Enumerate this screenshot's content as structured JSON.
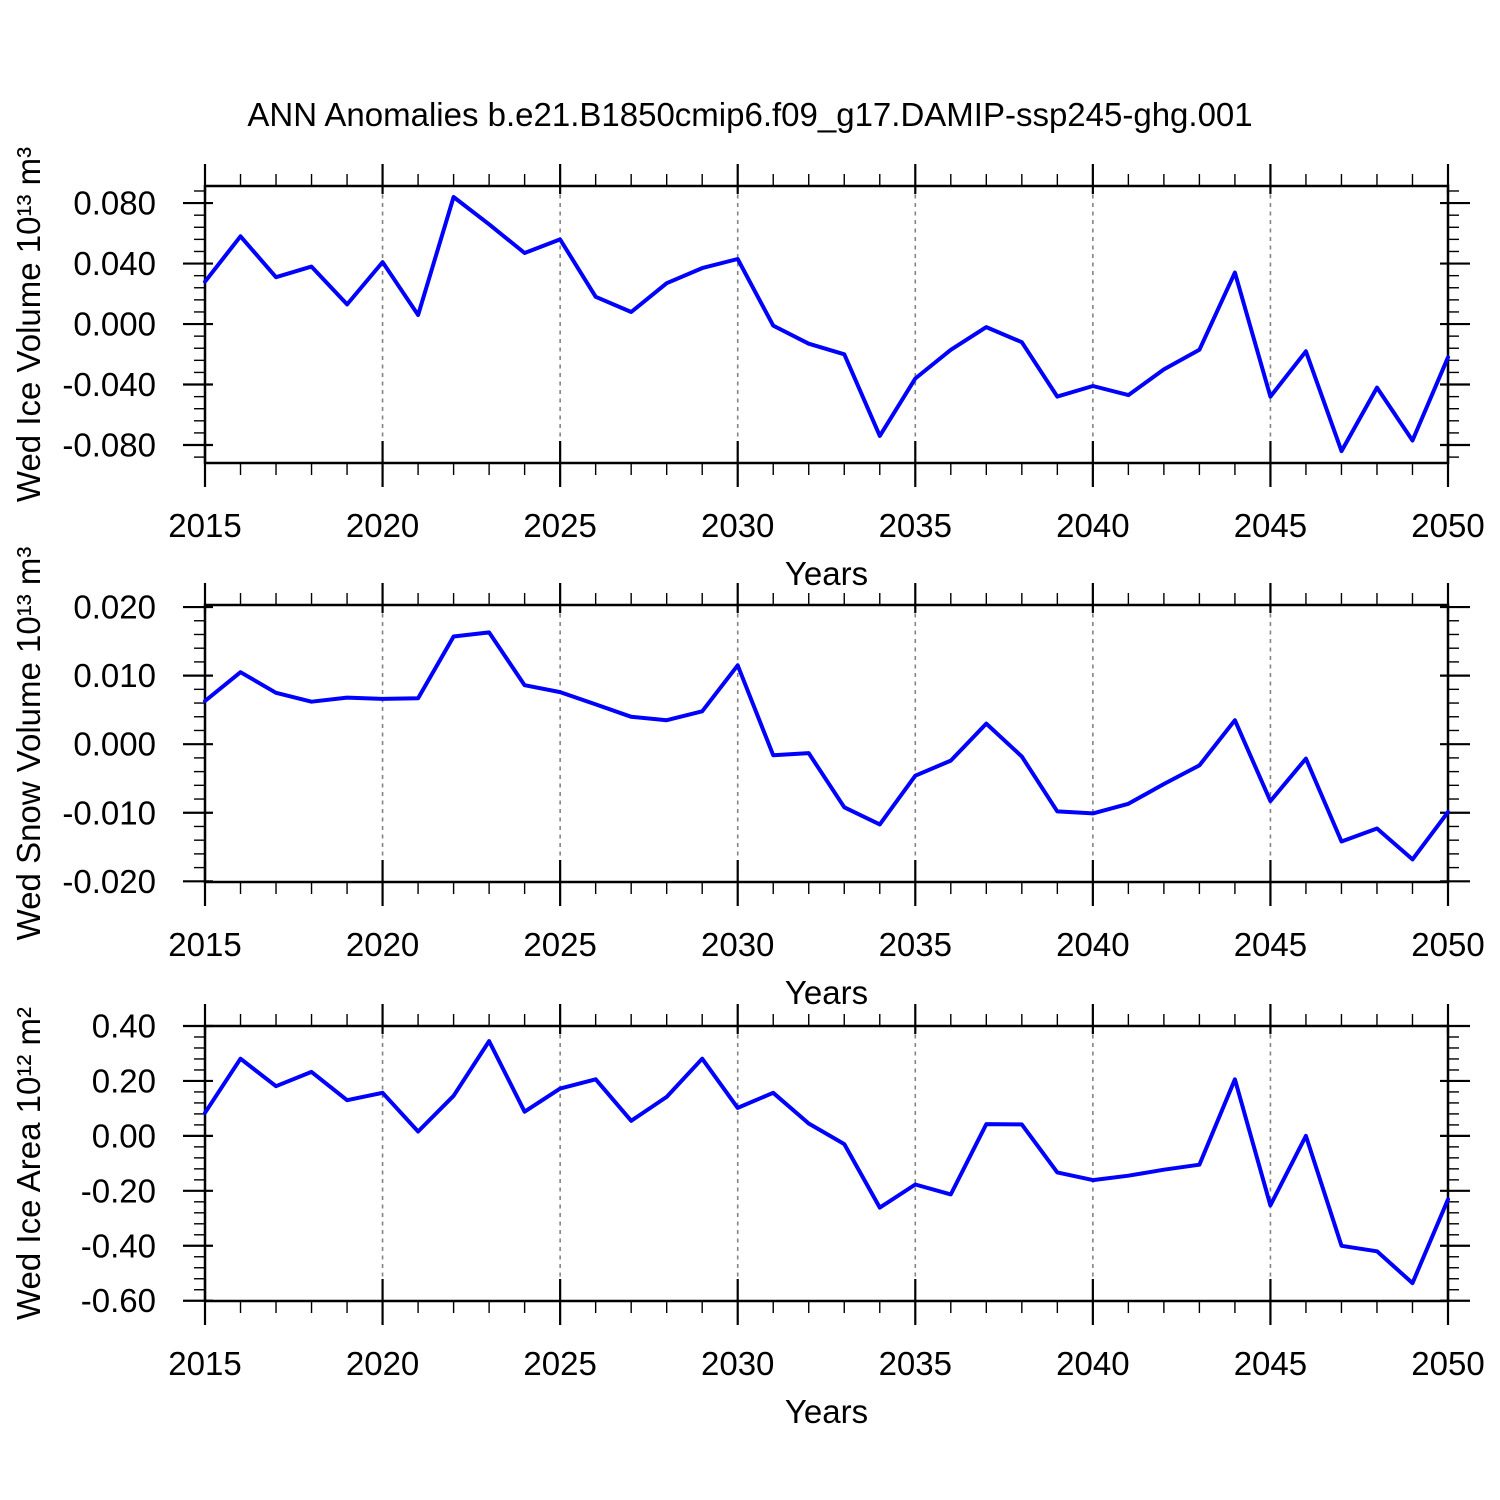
{
  "title": "ANN Anomalies b.e21.B1850cmip6.f09_g17.DAMIP-ssp245-ghg.001",
  "chart_data": {
    "type": "line",
    "line_color": "#0000ff",
    "x_axis_title": "Years",
    "x": [
      2015,
      2016,
      2017,
      2018,
      2019,
      2020,
      2021,
      2022,
      2023,
      2024,
      2025,
      2026,
      2027,
      2028,
      2029,
      2030,
      2031,
      2032,
      2033,
      2034,
      2035,
      2036,
      2037,
      2038,
      2039,
      2040,
      2041,
      2042,
      2043,
      2044,
      2045,
      2046,
      2047,
      2048,
      2049,
      2050
    ],
    "x_major_ticks": [
      2015,
      2020,
      2025,
      2030,
      2035,
      2040,
      2045,
      2050
    ],
    "x_major_tick_labels": [
      "2015",
      "2020",
      "2025",
      "2030",
      "2035",
      "2040",
      "2045",
      "2050"
    ],
    "x_gridline_years": [
      2020,
      2025,
      2030,
      2035,
      2040,
      2045
    ],
    "grid_style": "vertical-dashed",
    "panels": [
      {
        "id": "ice-volume",
        "ylabel": "Wed Ice Volume 10¹³ m³",
        "xlabel": "Years",
        "ylim": [
          -0.0919,
          0.0913
        ],
        "y_minor_step": 0.008,
        "yticks": [
          {
            "v": 0.08,
            "label": "0.080"
          },
          {
            "v": 0.04,
            "label": "0.040"
          },
          {
            "v": 0.0,
            "label": "0.000"
          },
          {
            "v": -0.04,
            "label": "-0.040"
          },
          {
            "v": -0.08,
            "label": "-0.080"
          }
        ],
        "values": [
          0.028,
          0.058,
          0.031,
          0.038,
          0.013,
          0.041,
          0.006,
          0.084,
          0.066,
          0.047,
          0.056,
          0.018,
          0.008,
          0.027,
          0.037,
          0.043,
          -0.001,
          -0.013,
          -0.02,
          -0.074,
          -0.036,
          -0.017,
          -0.002,
          -0.012,
          -0.048,
          -0.041,
          -0.047,
          -0.03,
          -0.017,
          0.034,
          -0.048,
          -0.018,
          -0.084,
          -0.042,
          -0.077,
          -0.022
        ]
      },
      {
        "id": "snow-volume",
        "ylabel": "Wed Snow Volume 10¹³ m³",
        "xlabel": "Years",
        "ylim": [
          -0.0201,
          0.0203
        ],
        "y_minor_step": 0.002,
        "yticks": [
          {
            "v": 0.02,
            "label": "0.020"
          },
          {
            "v": 0.01,
            "label": "0.010"
          },
          {
            "v": 0.0,
            "label": "0.000"
          },
          {
            "v": -0.01,
            "label": "-0.010"
          },
          {
            "v": -0.02,
            "label": "-0.020"
          }
        ],
        "values": [
          0.0063,
          0.0105,
          0.0075,
          0.0062,
          0.0068,
          0.0066,
          0.0067,
          0.0157,
          0.0163,
          0.0086,
          0.0076,
          0.0058,
          0.004,
          0.0035,
          0.0048,
          0.0115,
          -0.0016,
          -0.0013,
          -0.0092,
          -0.0117,
          -0.0046,
          -0.0024,
          0.003,
          -0.0018,
          -0.0098,
          -0.0101,
          -0.0087,
          -0.0058,
          -0.0031,
          0.0035,
          -0.0083,
          -0.0021,
          -0.0142,
          -0.0123,
          -0.0168,
          -0.0099
        ]
      },
      {
        "id": "ice-area",
        "ylabel": "Wed Ice Area 10¹² m²",
        "xlabel": "Years",
        "ylim": [
          -0.601,
          0.4
        ],
        "y_minor_step": 0.04,
        "yticks": [
          {
            "v": 0.4,
            "label": "0.40"
          },
          {
            "v": 0.2,
            "label": "0.20"
          },
          {
            "v": 0.0,
            "label": "0.00"
          },
          {
            "v": -0.2,
            "label": "-0.20"
          },
          {
            "v": -0.4,
            "label": "-0.40"
          },
          {
            "v": -0.6,
            "label": "-0.60"
          }
        ],
        "values": [
          0.084,
          0.281,
          0.181,
          0.233,
          0.13,
          0.157,
          0.016,
          0.146,
          0.345,
          0.088,
          0.172,
          0.206,
          0.055,
          0.142,
          0.281,
          0.102,
          0.157,
          0.045,
          -0.03,
          -0.261,
          -0.177,
          -0.213,
          0.043,
          0.042,
          -0.133,
          -0.161,
          -0.145,
          -0.123,
          -0.105,
          0.206,
          -0.253,
          0.0,
          -0.4,
          -0.42,
          -0.536,
          -0.231
        ]
      }
    ]
  }
}
